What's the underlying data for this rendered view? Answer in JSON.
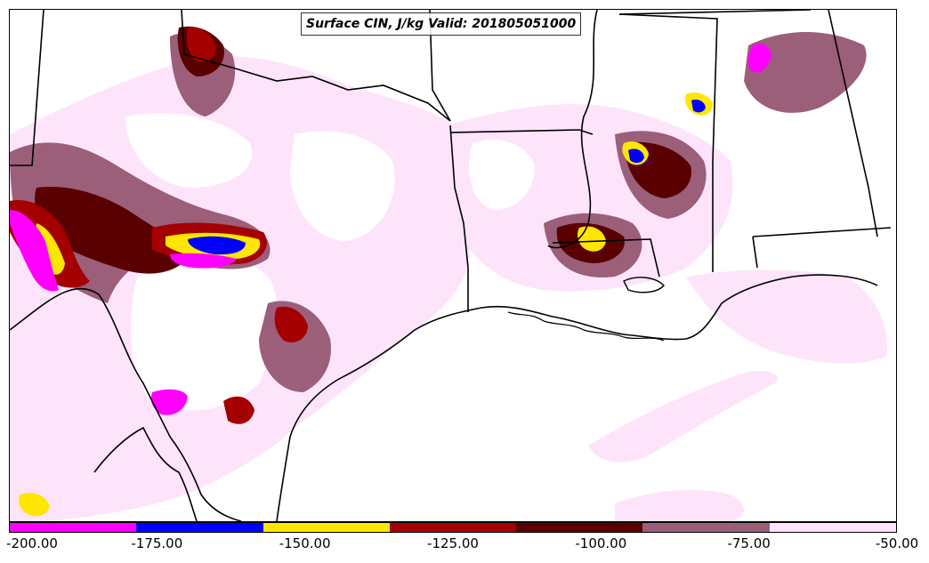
{
  "map": {
    "title": "Surface CIN, J/kg Valid: 201805051000",
    "fill_colors": {
      "magenta": "#ff00ff",
      "blue": "#0000ff",
      "yellow": "#ffe600",
      "red": "#a50000",
      "dark_red": "#5a0000",
      "mauve": "#9b5f7a",
      "pink": "#fde4fb",
      "white": "#ffffff"
    }
  },
  "colorbar": {
    "segments": [
      {
        "color": "#ff00ff"
      },
      {
        "color": "#0000ff"
      },
      {
        "color": "#ffe600"
      },
      {
        "color": "#a50000"
      },
      {
        "color": "#5a0000"
      },
      {
        "color": "#9b5f7a"
      },
      {
        "color": "#fde4fb"
      }
    ],
    "ticks": [
      "-200.00",
      "-175.00",
      "-150.00",
      "-125.00",
      "-100.00",
      "-75.00",
      "-50.00"
    ]
  }
}
